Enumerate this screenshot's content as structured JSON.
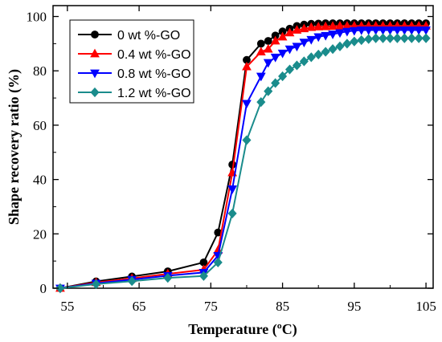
{
  "chart_data": {
    "type": "line",
    "title": "",
    "xlabel": "Temperature (ºC)",
    "ylabel": "Shape recovery ratio (%)",
    "xlim": [
      53,
      106
    ],
    "ylim": [
      0,
      104
    ],
    "xticks": [
      55,
      65,
      75,
      85,
      95,
      105
    ],
    "yticks": [
      0,
      20,
      40,
      60,
      80,
      100
    ],
    "legend_position": "top-left",
    "grid": false,
    "series": [
      {
        "name": "0 wt %-GO",
        "color": "#000000",
        "marker": "circle",
        "x": [
          54,
          59,
          64,
          69,
          74,
          76,
          78,
          80,
          82,
          83,
          84,
          85,
          86,
          87,
          88,
          89,
          90,
          91,
          92,
          93,
          94,
          95,
          96,
          97,
          98,
          99,
          100,
          101,
          102,
          103,
          104,
          105
        ],
        "y": [
          0,
          2.5,
          4.3,
          6.2,
          9.5,
          20.5,
          45.5,
          84,
          90,
          91,
          93,
          94.5,
          95.5,
          96.5,
          97,
          97.3,
          97.4,
          97.5,
          97.5,
          97.5,
          97.5,
          97.5,
          97.5,
          97.5,
          97.5,
          97.5,
          97.5,
          97.5,
          97.5,
          97.5,
          97.5,
          97.5
        ]
      },
      {
        "name": "0.4 wt %-GO",
        "color": "#ff0000",
        "marker": "triangle-up",
        "x": [
          54,
          59,
          64,
          69,
          74,
          76,
          78,
          80,
          82,
          83,
          84,
          85,
          86,
          87,
          88,
          89,
          90,
          91,
          92,
          93,
          94,
          95,
          96,
          97,
          98,
          99,
          100,
          101,
          102,
          103,
          104,
          105
        ],
        "y": [
          0,
          2.1,
          3.6,
          5.3,
          6.8,
          14,
          42.5,
          81.5,
          87,
          88,
          91,
          92.5,
          94,
          95,
          95.5,
          96,
          96.2,
          96.3,
          96.4,
          96.5,
          96.5,
          96.5,
          96.5,
          96.5,
          96.5,
          96.5,
          96.5,
          96.5,
          96.5,
          96.5,
          96.5,
          96.5
        ]
      },
      {
        "name": "0.8 wt %-GO",
        "color": "#0000ff",
        "marker": "triangle-down",
        "x": [
          54,
          59,
          64,
          69,
          74,
          76,
          78,
          80,
          82,
          83,
          84,
          85,
          86,
          87,
          88,
          89,
          90,
          91,
          92,
          93,
          94,
          95,
          96,
          97,
          98,
          99,
          100,
          101,
          102,
          103,
          104,
          105
        ],
        "y": [
          0,
          1.8,
          3.2,
          4.6,
          5.8,
          12,
          36.5,
          68,
          78,
          83,
          85,
          86.5,
          88,
          89,
          90.5,
          91.5,
          92.5,
          93,
          93.5,
          94,
          94.5,
          94.8,
          95,
          95,
          95,
          95,
          95,
          95,
          95,
          95,
          95,
          95
        ]
      },
      {
        "name": "1.2 wt %-GO",
        "color": "#1a8c8c",
        "marker": "diamond",
        "x": [
          54,
          59,
          64,
          69,
          74,
          76,
          78,
          80,
          82,
          83,
          84,
          85,
          86,
          87,
          88,
          89,
          90,
          91,
          92,
          93,
          94,
          95,
          96,
          97,
          98,
          99,
          100,
          101,
          102,
          103,
          104,
          105
        ],
        "y": [
          0,
          1.5,
          2.6,
          3.8,
          4.5,
          9.5,
          27.5,
          54.5,
          68.5,
          72.5,
          75.5,
          78,
          80.5,
          82,
          83.5,
          85,
          86,
          87,
          88,
          89,
          90,
          90.8,
          91.3,
          91.7,
          92,
          92,
          92,
          92,
          92,
          92,
          92,
          92
        ]
      }
    ]
  }
}
